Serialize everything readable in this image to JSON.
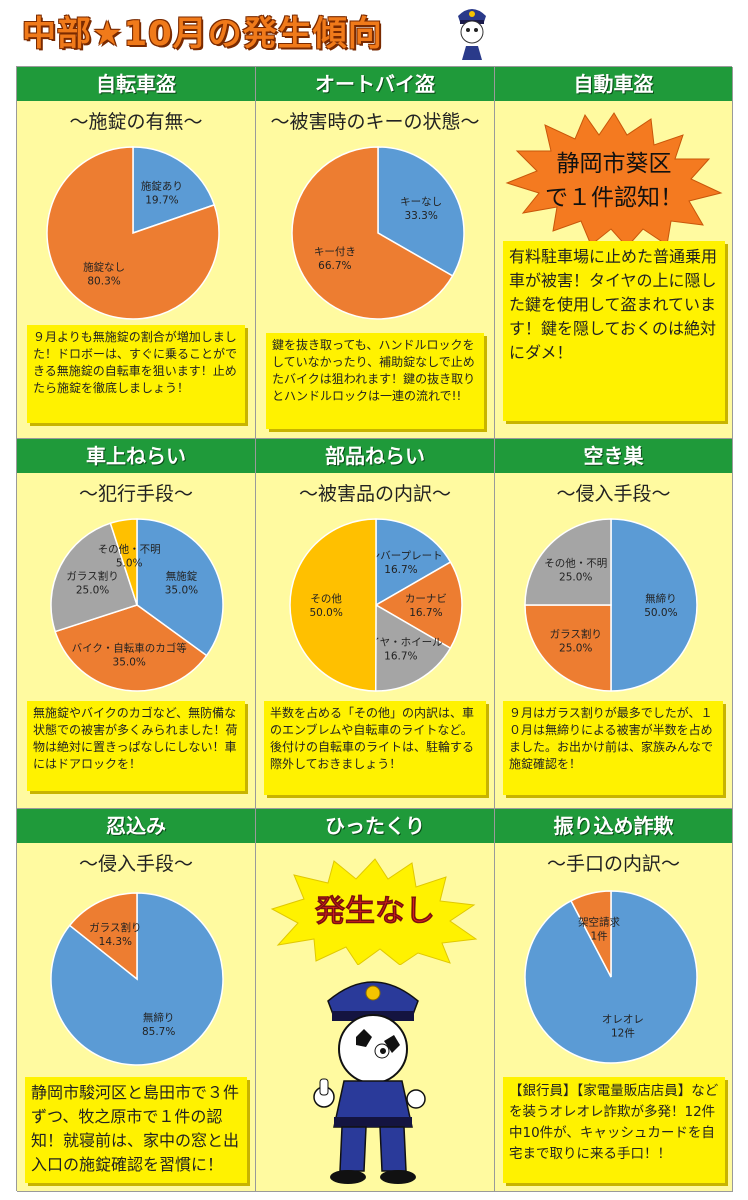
{
  "header": {
    "title": "中部★10月の発生傾向"
  },
  "cells": [
    {
      "title": "自転車盗",
      "subtitle": "～施錠の有無～",
      "note": "９月よりも無施錠の割合が増加しました！ドロボーは、すぐに乗ることができる無施錠の自転車を狙います！止めたら施錠を徹底しましょう！"
    },
    {
      "title": "オートバイ盗",
      "subtitle": "～被害時のキーの状態～",
      "note": "鍵を抜き取っても、ハンドルロックをしていなかったり、補助錠なしで止めたバイクは狙われます！鍵の抜き取りとハンドルロックは一連の流れで!!"
    },
    {
      "title": "自動車盗",
      "burst": "静岡市葵区で１件認知！",
      "note": "有料駐車場に止めた普通乗用車が被害！タイヤの上に隠した鍵を使用して盗まれています！鍵を隠しておくのは絶対にダメ！"
    },
    {
      "title": "車上ねらい",
      "subtitle": "～犯行手段～",
      "note": "無施錠やバイクのカゴなど、無防備な状態での被害が多くみられました！荷物は絶対に置きっぱなしにしない！車にはドアロックを！"
    },
    {
      "title": "部品ねらい",
      "subtitle": "～被害品の内訳～",
      "note": "半数を占める「その他」の内訳は、車のエンブレムや自転車のライトなど。後付けの自転車のライトは、駐輪する際外しておきましょう！"
    },
    {
      "title": "空き巣",
      "subtitle": "～侵入手段～",
      "note": "９月はガラス割りが最多でしたが、１０月は無締りによる被害が半数を占めました。お出かけ前は、家族みんなで施錠確認を！"
    },
    {
      "title": "忍込み",
      "subtitle": "～侵入手段～",
      "note": "静岡市駿河区と島田市で３件ずつ、牧之原市で１件の認知！就寝前は、家中の窓と出入口の施錠確認を習慣に！"
    },
    {
      "title": "ひったくり",
      "nashi": "発生なし"
    },
    {
      "title": "振り込め詐欺",
      "subtitle": "～手口の内訳～",
      "note": "【銀行員】【家電量販店店員】などを装うオレオレ詐欺が多発！12件中10件が、キャッシュカードを自宅まで取りに来る手口！！"
    }
  ],
  "colors": {
    "blue": "#5b9bd5",
    "orange": "#ed7d31",
    "gray": "#a5a5a5",
    "yellow": "#ffc000",
    "header_green": "#1f9a3a",
    "cell_bg": "#fffaa0",
    "note": "#fff200"
  },
  "chart_data": [
    {
      "type": "pie",
      "title": "～施錠の有無～",
      "slices": [
        {
          "label": "施錠あり",
          "value": 19.7,
          "display": "19.7%",
          "color": "#5b9bd5"
        },
        {
          "label": "施錠なし",
          "value": 80.3,
          "display": "80.3%",
          "color": "#ed7d31"
        }
      ]
    },
    {
      "type": "pie",
      "title": "～被害時のキーの状態～",
      "slices": [
        {
          "label": "キーなし",
          "value": 33.3,
          "display": "33.3%",
          "color": "#5b9bd5"
        },
        {
          "label": "キー付き",
          "value": 66.7,
          "display": "66.7%",
          "color": "#ed7d31"
        }
      ]
    },
    {
      "type": "pie",
      "title": "～犯行手段～",
      "slices": [
        {
          "label": "無施錠",
          "value": 35.0,
          "display": "35.0%",
          "color": "#5b9bd5"
        },
        {
          "label": "バイク・自転車のカゴ等",
          "value": 35.0,
          "display": "35.0%",
          "color": "#ed7d31"
        },
        {
          "label": "ガラス割り",
          "value": 25.0,
          "display": "25.0%",
          "color": "#a5a5a5"
        },
        {
          "label": "その他・不明",
          "value": 5.0,
          "display": "5.0%",
          "color": "#ffc000"
        }
      ]
    },
    {
      "type": "pie",
      "title": "～被害品の内訳～",
      "slices": [
        {
          "label": "ナンバープレート",
          "value": 16.7,
          "display": "16.7%",
          "color": "#5b9bd5"
        },
        {
          "label": "カーナビ",
          "value": 16.7,
          "display": "16.7%",
          "color": "#ed7d31"
        },
        {
          "label": "タイヤ・ホイール",
          "value": 16.7,
          "display": "16.7%",
          "color": "#a5a5a5"
        },
        {
          "label": "その他",
          "value": 50.0,
          "display": "50.0%",
          "color": "#ffc000"
        }
      ]
    },
    {
      "type": "pie",
      "title": "～侵入手段～",
      "slices": [
        {
          "label": "無締り",
          "value": 50.0,
          "display": "50.0%",
          "color": "#5b9bd5"
        },
        {
          "label": "ガラス割り",
          "value": 25.0,
          "display": "25.0%",
          "color": "#ed7d31"
        },
        {
          "label": "その他・不明",
          "value": 25.0,
          "display": "25.0%",
          "color": "#a5a5a5"
        }
      ]
    },
    {
      "type": "pie",
      "title": "～侵入手段～",
      "slices": [
        {
          "label": "無締り",
          "value": 85.7,
          "display": "85.7%",
          "color": "#5b9bd5"
        },
        {
          "label": "ガラス割り",
          "value": 14.3,
          "display": "14.3%",
          "color": "#ed7d31"
        }
      ]
    },
    {
      "type": "pie",
      "title": "～手口の内訳～",
      "slices": [
        {
          "label": "オレオレ",
          "value": 12,
          "display": "12件",
          "color": "#5b9bd5"
        },
        {
          "label": "架空請求",
          "value": 1,
          "display": "1件",
          "color": "#ed7d31"
        }
      ]
    }
  ]
}
